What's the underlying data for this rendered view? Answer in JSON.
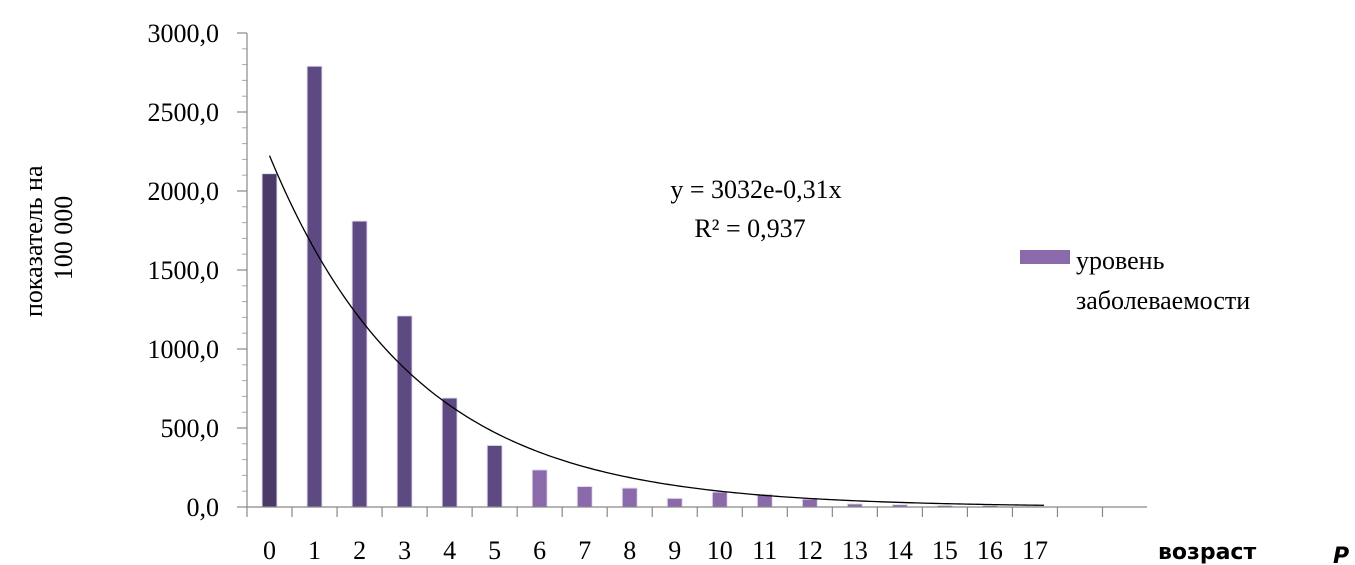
{
  "chart_data": {
    "type": "bar",
    "ylabel": "показатель на 100 000",
    "xlabel": "возраст",
    "corner_label": "Р",
    "categories": [
      "0",
      "1",
      "2",
      "3",
      "4",
      "5",
      "6",
      "7",
      "8",
      "9",
      "10",
      "11",
      "12",
      "13",
      "14",
      "15",
      "16",
      "17"
    ],
    "ylim": [
      0,
      3000
    ],
    "yticks": [
      "0,0",
      "500,0",
      "1000,0",
      "1500,0",
      "2000,0",
      "2500,0",
      "3000,0"
    ],
    "ytick_values": [
      0,
      500,
      1000,
      1500,
      2000,
      2500,
      3000
    ],
    "series": [
      {
        "name": "уровень заболеваемости",
        "values": [
          2110,
          2790,
          1810,
          1210,
          690,
          390,
          235,
          130,
          120,
          55,
          95,
          80,
          50,
          20,
          15,
          10,
          10,
          5
        ]
      }
    ],
    "trendline": {
      "type": "exponential",
      "a": 3032,
      "b": -0.31,
      "equation": "y = 3032e-0,31x",
      "r2": "R² = 0,937"
    },
    "legend": {
      "position": "right",
      "label_line1": "уровень",
      "label_line2": "заболеваемости"
    },
    "grid": false,
    "colors": {
      "bar_dark": "#4b3a68",
      "bar_light": "#8a6aaa",
      "legend_swatch": "#8a6aaa",
      "trend": "#000000",
      "axis": "#888888"
    }
  }
}
